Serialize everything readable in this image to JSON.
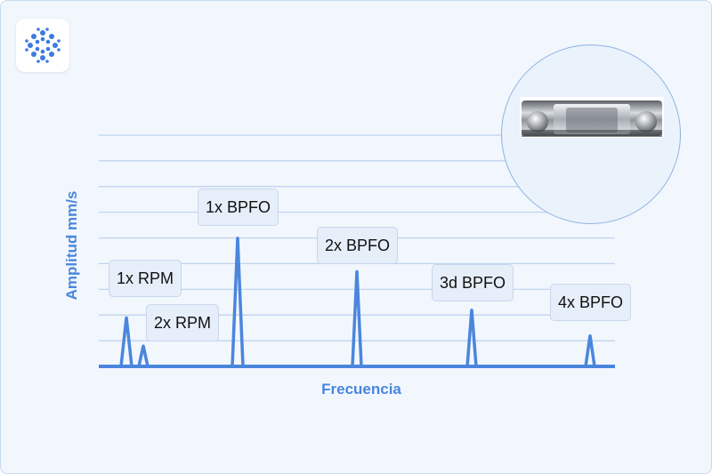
{
  "chart_data": {
    "type": "line",
    "title": "",
    "xlabel": "Frecuencia",
    "ylabel": "Amplitud mm/s",
    "grid": true,
    "ylim": [
      0,
      9
    ],
    "series": [
      {
        "peaks": [
          {
            "label": "1x RPM",
            "x": 1,
            "y": 1.9
          },
          {
            "label": "2x RPM",
            "x": 2,
            "y": 0.8
          },
          {
            "label": "1x BPFO",
            "x": 3,
            "y": 5.0
          },
          {
            "label": "2x BPFO",
            "x": 4,
            "y": 3.7
          },
          {
            "label": "3d BPFO",
            "x": 5,
            "y": 2.2
          },
          {
            "label": "4x BPFO",
            "x": 6,
            "y": 1.2
          }
        ]
      }
    ],
    "colors": {
      "line": "#4a86dd",
      "grid": "#bcd1ee",
      "axis_text": "#4a86dd"
    }
  },
  "logo_icon": "dotted-circle-logo-icon",
  "photo_icon": "ball-bearing-photo"
}
